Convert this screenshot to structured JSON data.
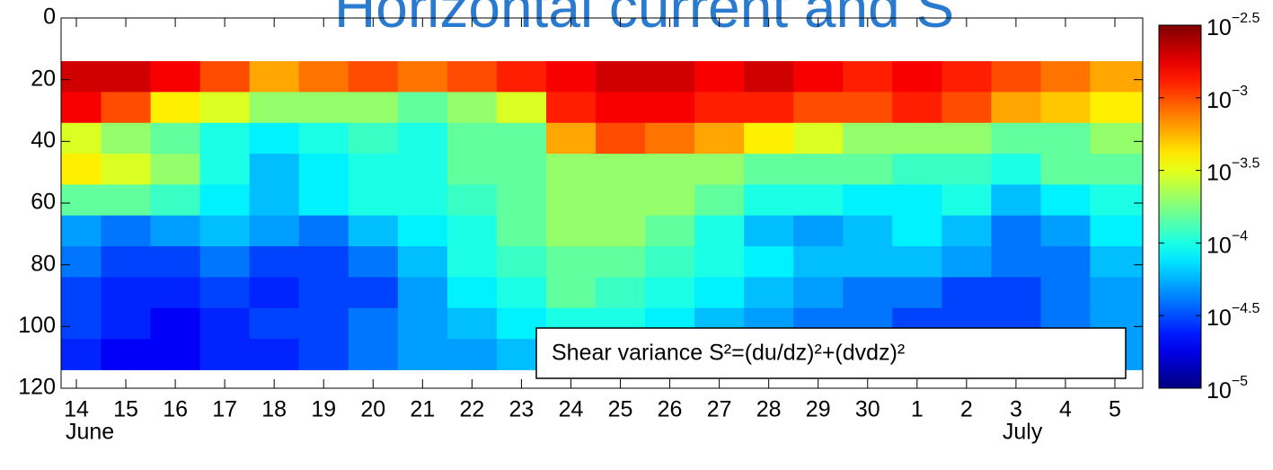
{
  "chart_data": {
    "type": "heatmap",
    "title": "Horizontal current and S",
    "annotation": "Shear variance S²=(du/dz)²+(dvdz)²",
    "categories": [
      "14",
      "15",
      "16",
      "17",
      "18",
      "19",
      "20",
      "21",
      "22",
      "23",
      "24",
      "25",
      "26",
      "27",
      "28",
      "29",
      "30",
      "1",
      "2",
      "3",
      "4",
      "5"
    ],
    "month_labels": [
      "June",
      "July"
    ],
    "depth_edges": [
      14,
      24,
      34,
      44,
      54,
      64,
      74,
      84,
      94,
      104,
      114
    ],
    "ylim": [
      120,
      0
    ],
    "yticks": [
      0,
      20,
      40,
      60,
      80,
      100,
      120
    ],
    "colormap": "jet",
    "log_color": true,
    "clim": [
      1e-05,
      0.003162
    ],
    "cticks": [
      {
        "value": 0.003162,
        "label": "10",
        "exponent": "−2.5"
      },
      {
        "value": 0.001,
        "label": "10",
        "exponent": "−3"
      },
      {
        "value": 0.0003162,
        "label": "10",
        "exponent": "−3.5"
      },
      {
        "value": 0.0001,
        "label": "10",
        "exponent": "−4"
      },
      {
        "value": 3.162e-05,
        "label": "10",
        "exponent": "−4.5"
      },
      {
        "value": 1e-05,
        "label": "10",
        "exponent": "−5"
      }
    ],
    "values": [
      [
        0.002,
        0.002,
        0.0016,
        0.001,
        0.0006,
        0.0008,
        0.001,
        0.0008,
        0.001,
        0.0013,
        0.0016,
        0.002,
        0.002,
        0.0016,
        0.002,
        0.0016,
        0.0013,
        0.0016,
        0.0013,
        0.001,
        0.0008,
        0.0006
      ],
      [
        0.0016,
        0.001,
        0.0004,
        0.0003,
        0.0002,
        0.0002,
        0.0002,
        0.00015,
        0.0002,
        0.0003,
        0.0013,
        0.0016,
        0.0016,
        0.0013,
        0.0013,
        0.001,
        0.001,
        0.0013,
        0.001,
        0.0006,
        0.0005,
        0.0004
      ],
      [
        0.0003,
        0.0002,
        0.00015,
        0.0001,
        8e-05,
        0.0001,
        0.00012,
        0.0001,
        0.00015,
        0.00015,
        0.0006,
        0.001,
        0.0008,
        0.0006,
        0.0004,
        0.0003,
        0.0002,
        0.0002,
        0.0002,
        0.00015,
        0.00015,
        0.0002
      ],
      [
        0.0004,
        0.0003,
        0.0002,
        0.0001,
        6e-05,
        8e-05,
        0.0001,
        0.0001,
        0.00015,
        0.00015,
        0.0002,
        0.0002,
        0.0002,
        0.0002,
        0.00015,
        0.00015,
        0.00015,
        0.00012,
        0.00012,
        0.0001,
        0.00015,
        0.00015
      ],
      [
        0.00015,
        0.00015,
        0.00012,
        8e-05,
        6e-05,
        8e-05,
        0.0001,
        0.0001,
        0.00012,
        0.00015,
        0.0002,
        0.0002,
        0.0002,
        0.00015,
        0.0001,
        0.0001,
        8e-05,
        8e-05,
        0.0001,
        6e-05,
        8e-05,
        0.0001
      ],
      [
        5e-05,
        4e-05,
        5e-05,
        6e-05,
        5e-05,
        4e-05,
        6e-05,
        8e-05,
        0.0001,
        0.00015,
        0.0002,
        0.0002,
        0.00015,
        0.0001,
        6e-05,
        5e-05,
        6e-05,
        8e-05,
        6e-05,
        4e-05,
        5e-05,
        8e-05
      ],
      [
        4e-05,
        3e-05,
        3e-05,
        4e-05,
        3e-05,
        3e-05,
        4e-05,
        6e-05,
        0.0001,
        0.00012,
        0.00015,
        0.00015,
        0.00012,
        0.0001,
        8e-05,
        6e-05,
        6e-05,
        6e-05,
        5e-05,
        4e-05,
        4e-05,
        6e-05
      ],
      [
        3e-05,
        2.5e-05,
        2.5e-05,
        3e-05,
        2.5e-05,
        3e-05,
        3e-05,
        5e-05,
        8e-05,
        0.0001,
        0.00015,
        0.00012,
        0.0001,
        8e-05,
        6e-05,
        5e-05,
        4e-05,
        4e-05,
        3e-05,
        3e-05,
        4e-05,
        5e-05
      ],
      [
        3e-05,
        2.5e-05,
        2e-05,
        2.5e-05,
        3e-05,
        3e-05,
        4e-05,
        5e-05,
        6e-05,
        8e-05,
        0.0001,
        0.0001,
        8e-05,
        6e-05,
        5e-05,
        4e-05,
        4e-05,
        3e-05,
        3e-05,
        3e-05,
        4e-05,
        5e-05
      ],
      [
        2.5e-05,
        2e-05,
        2e-05,
        2.5e-05,
        2.5e-05,
        3e-05,
        4e-05,
        5e-05,
        5e-05,
        6e-05,
        8e-05,
        8e-05,
        6e-05,
        5e-05,
        4e-05,
        4e-05,
        3e-05,
        3e-05,
        3e-05,
        3e-05,
        4e-05,
        5e-05
      ]
    ]
  }
}
